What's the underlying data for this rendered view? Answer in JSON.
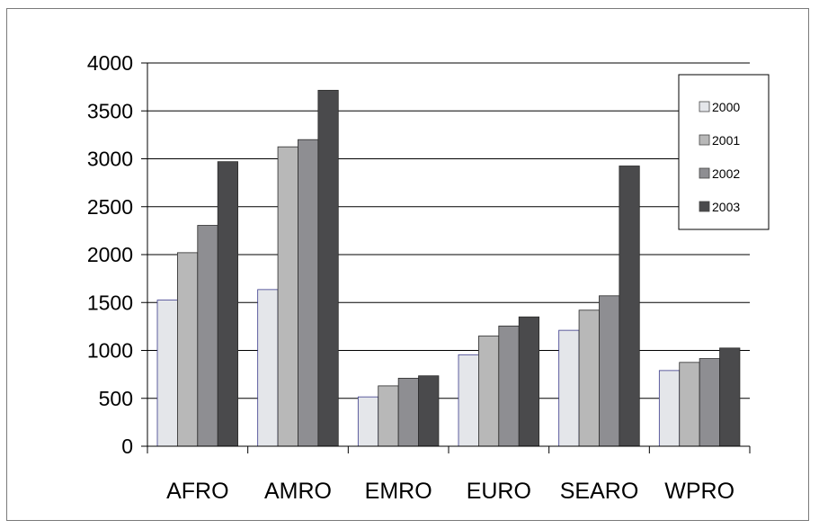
{
  "chart_data": {
    "type": "bar",
    "categories": [
      "AFRO",
      "AMRO",
      "EMRO",
      "EURO",
      "SEARO",
      "WPRO"
    ],
    "series": [
      {
        "name": "2000",
        "values": [
          1525,
          1635,
          515,
          955,
          1210,
          790
        ]
      },
      {
        "name": "2001",
        "values": [
          2020,
          3125,
          630,
          1150,
          1420,
          875
        ]
      },
      {
        "name": "2002",
        "values": [
          2305,
          3200,
          710,
          1255,
          1570,
          915
        ]
      },
      {
        "name": "2003",
        "values": [
          2970,
          3715,
          735,
          1350,
          2925,
          1025
        ]
      }
    ],
    "title": "",
    "xlabel": "",
    "ylabel": "",
    "ylim": [
      0,
      4000
    ],
    "yticks": [
      0,
      500,
      1000,
      1500,
      2000,
      2500,
      3000,
      3500,
      4000
    ],
    "grid": true,
    "legend_position": "right",
    "colors": [
      "#e4e6ea",
      "#b8b8b8",
      "#8e8e92",
      "#4a4a4c"
    ]
  }
}
